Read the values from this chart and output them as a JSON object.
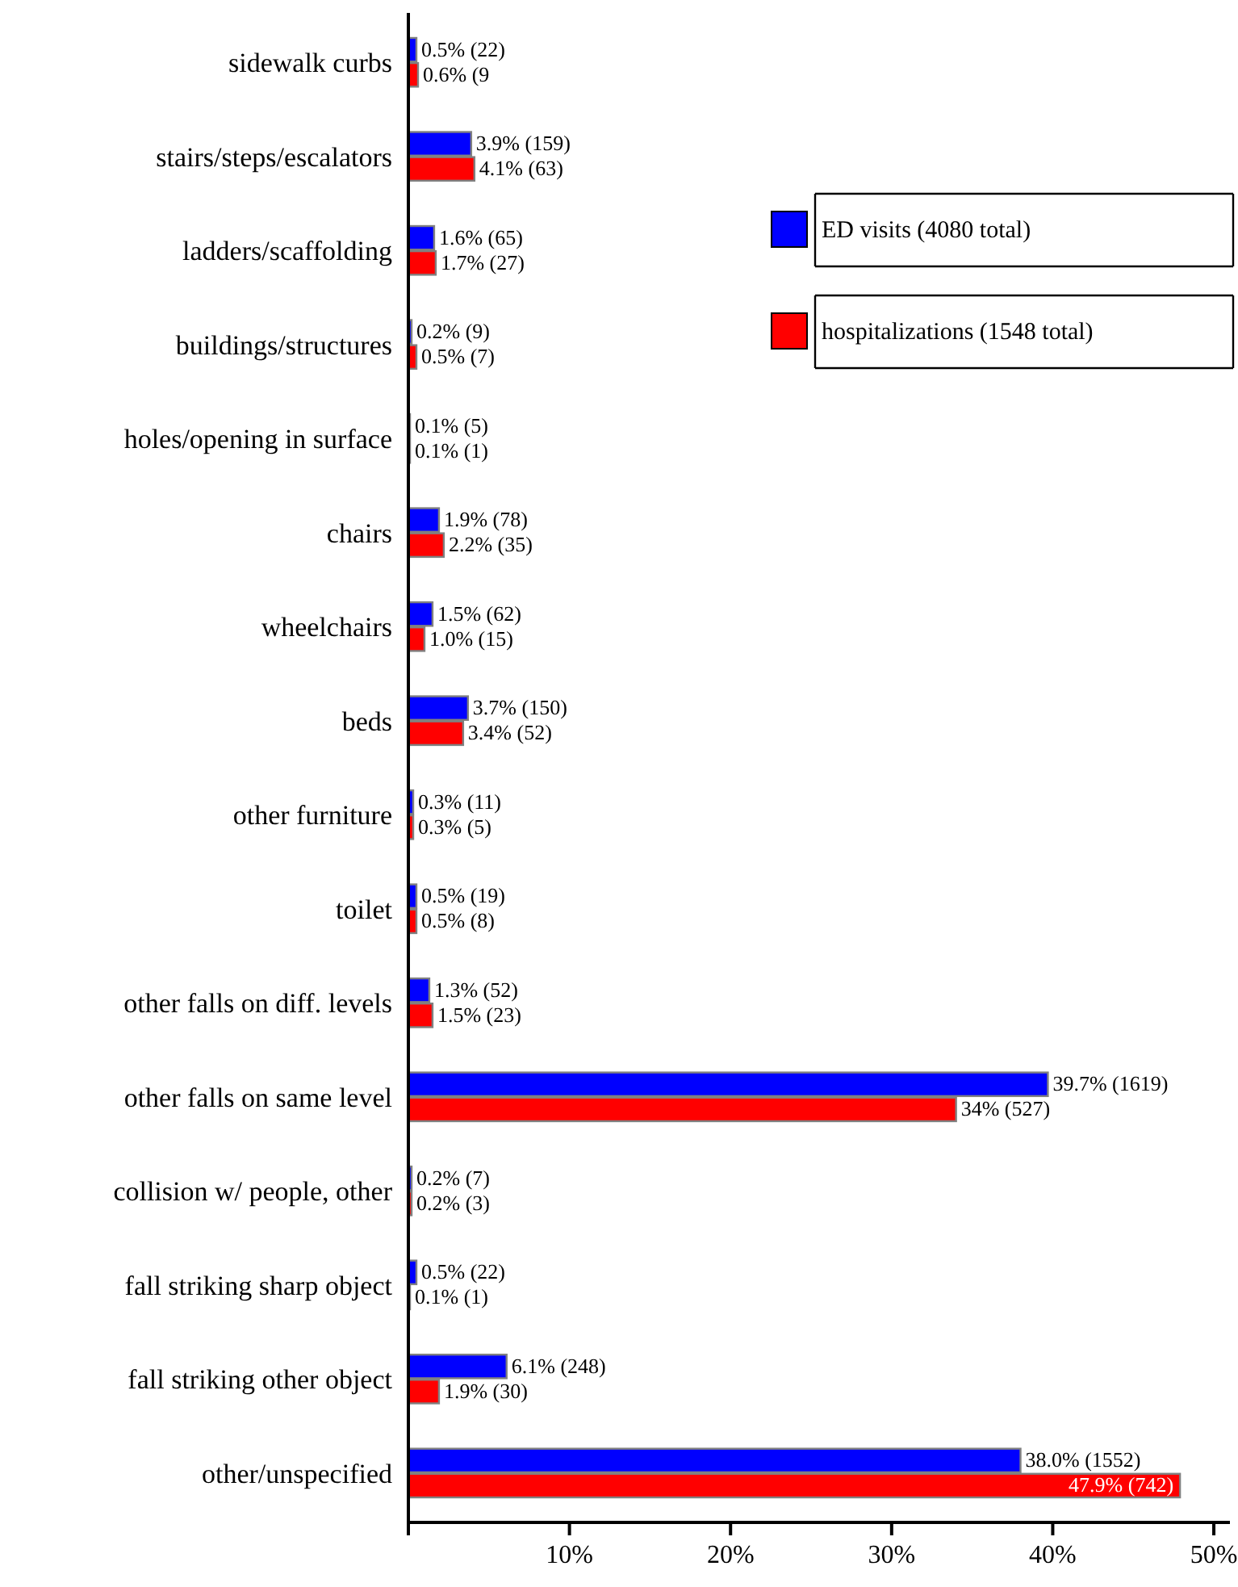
{
  "chart_data": {
    "type": "bar",
    "orientation": "horizontal",
    "categories": [
      "sidewalk curbs",
      "stairs/steps/escalators",
      "ladders/scaffolding",
      "buildings/structures",
      "holes/opening in surface",
      "chairs",
      "wheelchairs",
      "beds",
      "other furniture",
      "toilet",
      "other falls on diff. levels",
      "other falls on same level",
      "collision w/ people, other",
      "fall striking sharp object",
      "fall striking other object",
      "other/unspecified"
    ],
    "series": [
      {
        "name": "ED visits (4080 total)",
        "color": "#0000ff",
        "values": [
          0.5,
          3.9,
          1.6,
          0.2,
          0.1,
          1.9,
          1.5,
          3.7,
          0.3,
          0.5,
          1.3,
          39.7,
          0.2,
          0.5,
          6.1,
          38.0
        ],
        "value_labels": [
          "0.5% (22)",
          "3.9% (159)",
          "1.6% (65)",
          "0.2% (9)",
          "0.1% (5)",
          "1.9% (78)",
          "1.5% (62)",
          "3.7% (150)",
          "0.3% (11)",
          "0.5% (19)",
          "1.3% (52)",
          "39.7% (1619)",
          "0.2% (7)",
          "0.5% (22)",
          "6.1% (248)",
          "38.0% (1552)"
        ]
      },
      {
        "name": "hospitalizations (1548 total)",
        "color": "#ff0000",
        "values": [
          0.6,
          4.1,
          1.7,
          0.5,
          0.1,
          2.2,
          1.0,
          3.4,
          0.3,
          0.5,
          1.5,
          34,
          0.2,
          0.1,
          1.9,
          47.9
        ],
        "value_labels": [
          "0.6% (9",
          "4.1% (63)",
          "1.7% (27)",
          "0.5% (7)",
          "0.1% (1)",
          "2.2% (35)",
          "1.0% (15)",
          "3.4% (52)",
          "0.3% (5)",
          "0.5% (8)",
          "1.5% (23)",
          "34% (527)",
          "0.2% (3)",
          "0.1% (1)",
          "1.9% (30)",
          "47.9% (742)"
        ]
      }
    ],
    "xlim": [
      0,
      51
    ],
    "xticks": [
      {
        "value": 0,
        "label": null
      },
      {
        "value": 10,
        "label": "10%"
      },
      {
        "value": 20,
        "label": "20%"
      },
      {
        "value": 30,
        "label": "30%"
      },
      {
        "value": 40,
        "label": "40%"
      },
      {
        "value": 50,
        "label": "50%"
      }
    ],
    "legend": "top right"
  }
}
